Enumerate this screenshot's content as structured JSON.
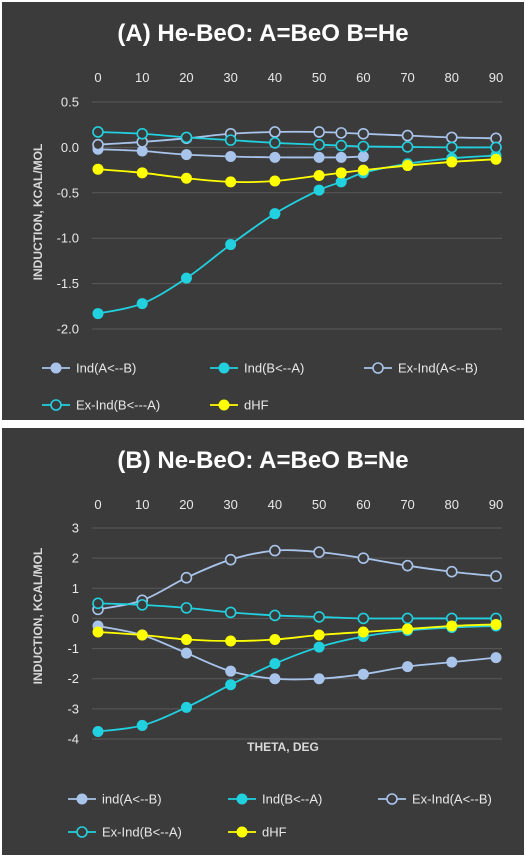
{
  "chart_data": [
    {
      "type": "line",
      "title": "(A) He-BeO: A=BeO B=He",
      "xlabel": "",
      "ylabel": "INDUCTION, KCAL/MOL",
      "xlim": [
        0,
        90
      ],
      "ylim": [
        -2.0,
        0.5
      ],
      "xticks": [
        "0",
        "10",
        "20",
        "30",
        "40",
        "50",
        "60",
        "70",
        "80",
        "90"
      ],
      "yticks": [
        "0.5",
        "0.0",
        "-0.5",
        "-1.0",
        "-1.5",
        "-2.0"
      ],
      "x_axis_position": "top",
      "grid": "horizontal",
      "legend": "bottom",
      "series": [
        {
          "name": "Ind(A<--B)",
          "color": "#a9c4eb",
          "marker": "filled",
          "x": [
            0,
            10,
            20,
            30,
            40,
            50,
            55,
            60
          ],
          "y": [
            -0.02,
            -0.04,
            -0.08,
            -0.1,
            -0.11,
            -0.11,
            -0.11,
            -0.1
          ]
        },
        {
          "name": "Ind(B<--A)",
          "color": "#22d1e0",
          "marker": "filled",
          "x": [
            0,
            10,
            20,
            30,
            40,
            50,
            55,
            60,
            70,
            80,
            90
          ],
          "y": [
            -1.83,
            -1.72,
            -1.44,
            -1.07,
            -0.73,
            -0.47,
            -0.38,
            -0.28,
            -0.18,
            -0.12,
            -0.09
          ]
        },
        {
          "name": "Ex-Ind(A<--B)",
          "color": "#a9c4eb",
          "marker": "open",
          "x": [
            0,
            10,
            20,
            30,
            40,
            50,
            55,
            60,
            70,
            80,
            90
          ],
          "y": [
            0.03,
            0.06,
            0.1,
            0.15,
            0.17,
            0.17,
            0.16,
            0.15,
            0.13,
            0.11,
            0.1
          ]
        },
        {
          "name": "Ex-Ind(B<---A)",
          "color": "#22d1e0",
          "marker": "open",
          "x": [
            0,
            10,
            20,
            30,
            40,
            50,
            55,
            60,
            70,
            80,
            90
          ],
          "y": [
            0.17,
            0.15,
            0.11,
            0.08,
            0.05,
            0.03,
            0.02,
            0.01,
            0.005,
            0.0,
            0.0
          ]
        },
        {
          "name": "dHF",
          "color": "#ffff00",
          "marker": "filled",
          "x": [
            0,
            10,
            20,
            30,
            40,
            50,
            55,
            60,
            70,
            80,
            90
          ],
          "y": [
            -0.24,
            -0.28,
            -0.34,
            -0.38,
            -0.37,
            -0.31,
            -0.28,
            -0.25,
            -0.2,
            -0.16,
            -0.13
          ]
        }
      ]
    },
    {
      "type": "line",
      "title": "(B) Ne-BeO: A=BeO B=Ne",
      "xlabel": "THETA, DEG",
      "ylabel": "INDUCTION, KCAL/MOL",
      "xlim": [
        0,
        90
      ],
      "ylim": [
        -4,
        3
      ],
      "xticks": [
        "0",
        "10",
        "20",
        "30",
        "40",
        "50",
        "60",
        "70",
        "80",
        "90"
      ],
      "yticks": [
        "3",
        "2",
        "1",
        "0",
        "-1",
        "-2",
        "-3",
        "-4"
      ],
      "x_axis_position": "top",
      "grid": "horizontal",
      "legend": "bottom",
      "series": [
        {
          "name": "ind(A<--B)",
          "color": "#a9c4eb",
          "marker": "filled",
          "x": [
            0,
            10,
            20,
            30,
            40,
            50,
            60,
            70,
            80,
            90
          ],
          "y": [
            -0.25,
            -0.55,
            -1.15,
            -1.75,
            -2.0,
            -2.0,
            -1.85,
            -1.6,
            -1.45,
            -1.3
          ]
        },
        {
          "name": "Ind(B<--A)",
          "color": "#22d1e0",
          "marker": "filled",
          "x": [
            0,
            10,
            20,
            30,
            40,
            50,
            60,
            70,
            80,
            90
          ],
          "y": [
            -3.75,
            -3.55,
            -2.95,
            -2.2,
            -1.5,
            -0.95,
            -0.6,
            -0.4,
            -0.3,
            -0.25
          ]
        },
        {
          "name": "Ex-Ind(A<--B)",
          "color": "#a9c4eb",
          "marker": "open",
          "x": [
            0,
            10,
            20,
            30,
            40,
            50,
            60,
            70,
            80,
            90
          ],
          "y": [
            0.3,
            0.6,
            1.35,
            1.95,
            2.25,
            2.2,
            2.0,
            1.75,
            1.55,
            1.4
          ]
        },
        {
          "name": "Ex-Ind(B<--A)",
          "color": "#22d1e0",
          "marker": "open",
          "x": [
            0,
            10,
            20,
            30,
            40,
            50,
            60,
            70,
            80,
            90
          ],
          "y": [
            0.5,
            0.45,
            0.35,
            0.2,
            0.1,
            0.05,
            0.0,
            0.0,
            0.0,
            0.0
          ]
        },
        {
          "name": "dHF",
          "color": "#ffff00",
          "marker": "filled",
          "x": [
            0,
            10,
            20,
            30,
            40,
            50,
            60,
            70,
            80,
            90
          ],
          "y": [
            -0.45,
            -0.55,
            -0.7,
            -0.75,
            -0.7,
            -0.55,
            -0.45,
            -0.35,
            -0.25,
            -0.2
          ]
        }
      ]
    }
  ]
}
